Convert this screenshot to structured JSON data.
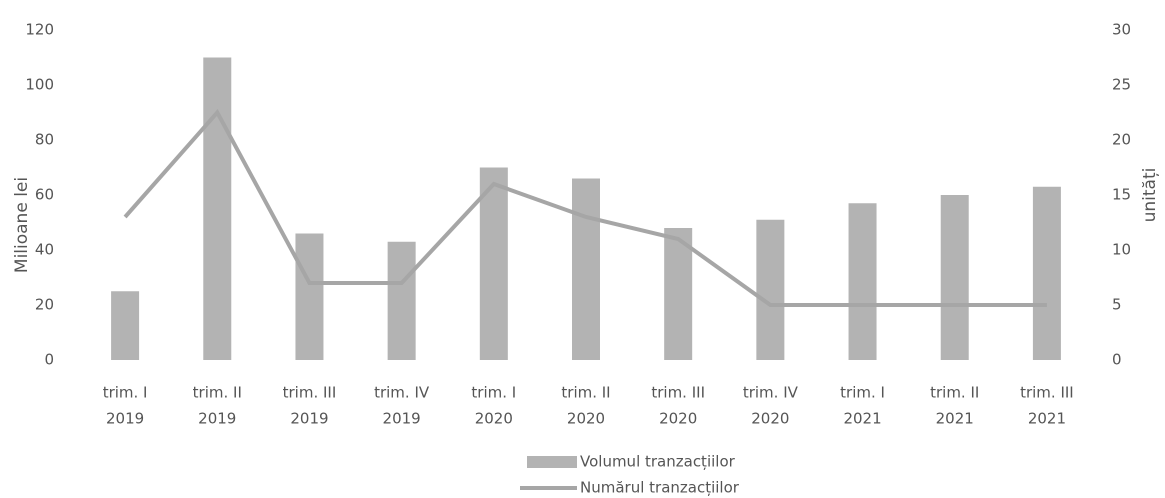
{
  "chart_data": {
    "type": "bar_line",
    "categories": [
      [
        "trim. I",
        "2019"
      ],
      [
        "trim. II",
        "2019"
      ],
      [
        "trim. III",
        "2019"
      ],
      [
        "trim. IV",
        "2019"
      ],
      [
        "trim. I",
        "2020"
      ],
      [
        "trim. II",
        "2020"
      ],
      [
        "trim. III",
        "2020"
      ],
      [
        "trim. IV",
        "2020"
      ],
      [
        "trim. I",
        "2021"
      ],
      [
        "trim. II",
        "2021"
      ],
      [
        "trim. III",
        "2021"
      ]
    ],
    "series": [
      {
        "name": "Volumul tranzacțiilor",
        "type": "bar",
        "color": "#b3b3b3",
        "values": [
          25,
          110,
          46,
          43,
          70,
          66,
          48,
          51,
          57,
          60,
          63
        ]
      },
      {
        "name": "Numărul tranzacțiilor",
        "type": "line",
        "axis": "y2",
        "color": "#a6a6a6",
        "values": [
          13,
          22.5,
          7,
          7,
          16,
          13,
          11,
          5,
          5,
          5,
          5
        ]
      }
    ],
    "ylabel": "Milioane lei",
    "y2label": "unități",
    "ylim": [
      0,
      120
    ],
    "yticks": [
      0,
      20,
      40,
      60,
      80,
      100,
      120
    ],
    "y2lim": [
      0,
      30
    ],
    "y2ticks": [
      0,
      5,
      10,
      15,
      20,
      25,
      30
    ],
    "legend": "bottom"
  }
}
